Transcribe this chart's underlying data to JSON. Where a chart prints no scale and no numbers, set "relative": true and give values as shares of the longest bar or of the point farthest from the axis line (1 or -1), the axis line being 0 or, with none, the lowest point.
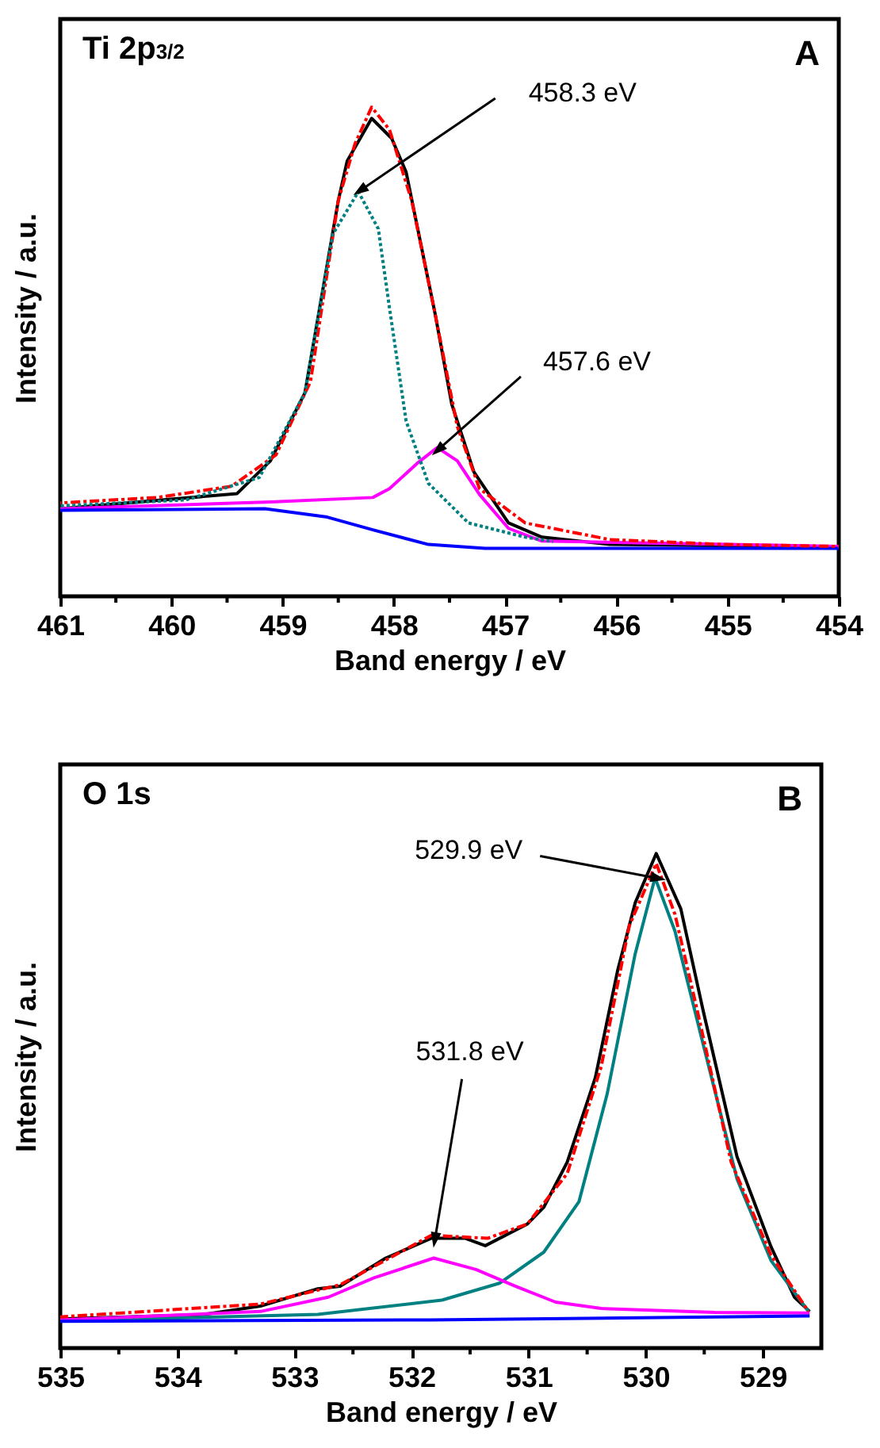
{
  "chart_data": [
    {
      "type": "line",
      "title": "Ti 2p$_{3/2}$",
      "xlabel": "Band energy / eV",
      "ylabel": "Intensity / a.u.",
      "relative": true,
      "xlim": [
        461,
        454
      ],
      "xticks": [
        461,
        {
          "value": 460.5,
          "label": null
        },
        460,
        {
          "value": 459.5,
          "label": null
        },
        459,
        {
          "value": 458.5,
          "label": null
        },
        458,
        {
          "value": 457.5,
          "label": null
        },
        457,
        {
          "value": 456.5,
          "label": null
        },
        456,
        {
          "value": 455.5,
          "label": null
        },
        455,
        {
          "value": 454.5,
          "label": null
        },
        454
      ],
      "annotations": [
        "A",
        {
          "text": "458.3 eV",
          "x": 458.3,
          "y": 0.83
        },
        {
          "text": "457.6 eV",
          "x": 457.6,
          "y": 0.3
        }
      ],
      "series": [
        {
          "color": "#000000",
          "line_style": "solid",
          "x": [
            461,
            459.41,
            459.11,
            458.8,
            458.5,
            458.42,
            458.2,
            458.02,
            457.89,
            457.63,
            457.48,
            457.28,
            456.97,
            456.67,
            456.06,
            454
          ],
          "values": [
            0.179,
            0.21,
            0.277,
            0.416,
            0.809,
            0.89,
            0.977,
            0.936,
            0.867,
            0.578,
            0.393,
            0.254,
            0.15,
            0.121,
            0.106,
            0.101
          ]
        },
        {
          "color": "#ff0000",
          "line_style": "dashed",
          "x": [
            461,
            460.13,
            459.46,
            459.06,
            458.75,
            458.5,
            458.35,
            458.2,
            458.04,
            457.84,
            457.63,
            457.43,
            457.23,
            456.82,
            456.06,
            455.04,
            454
          ],
          "values": [
            0.191,
            0.202,
            0.225,
            0.289,
            0.439,
            0.809,
            0.925,
            1,
            0.954,
            0.809,
            0.578,
            0.347,
            0.22,
            0.15,
            0.116,
            0.106,
            0.102
          ]
        },
        {
          "color": "#008080",
          "line_style": "dotted",
          "x": [
            461,
            459.87,
            459.21,
            458.8,
            458.55,
            458.32,
            458.14,
            458.04,
            457.89,
            457.69,
            457.33,
            456.82,
            456.57
          ],
          "values": [
            0.185,
            0.197,
            0.243,
            0.416,
            0.74,
            0.827,
            0.751,
            0.59,
            0.358,
            0.231,
            0.15,
            0.121,
            0.112
          ]
        },
        {
          "color": "#ff00ff",
          "line_style": "solid",
          "x": [
            461,
            459.11,
            458.19,
            458.04,
            457.79,
            457.61,
            457.43,
            457.23,
            456.97,
            456.67,
            454
          ],
          "values": [
            0.179,
            0.193,
            0.202,
            0.22,
            0.272,
            0.304,
            0.277,
            0.208,
            0.139,
            0.113,
            0.102
          ]
        },
        {
          "color": "#0000ff",
          "line_style": "solid",
          "x": [
            461,
            459.16,
            458.6,
            458.19,
            457.69,
            457.18,
            454
          ],
          "values": [
            0.176,
            0.179,
            0.162,
            0.136,
            0.106,
            0.098,
            0.098
          ]
        }
      ]
    },
    {
      "type": "line",
      "title": "O 1s",
      "xlabel": "Band energy / eV",
      "ylabel": "Intensity / a.u.",
      "relative": true,
      "xlim": [
        535,
        528.5
      ],
      "xticks": [
        535,
        {
          "value": 534.5,
          "label": null
        },
        534,
        {
          "value": 533.5,
          "label": null
        },
        533,
        {
          "value": 532.5,
          "label": null
        },
        532,
        {
          "value": 531.5,
          "label": null
        },
        531,
        {
          "value": 530.5,
          "label": null
        },
        530,
        {
          "value": 529.5,
          "label": null
        },
        529
      ],
      "annotations": [
        "B",
        {
          "text": "529.9 eV",
          "x": 529.9,
          "y": 0.95
        },
        {
          "text": "531.8 eV",
          "x": 531.8,
          "y": 0.22
        }
      ],
      "series": [
        {
          "color": "#000000",
          "line_style": "solid",
          "x": [
            535,
            533.77,
            533.29,
            532.8,
            532.61,
            532.22,
            531.83,
            531.54,
            531.37,
            531.01,
            530.87,
            530.67,
            530.43,
            530.24,
            530.09,
            529.91,
            529.7,
            529.51,
            529.22,
            528.93,
            528.73,
            528.6
          ],
          "values": [
            0.059,
            0.068,
            0.085,
            0.12,
            0.125,
            0.182,
            0.222,
            0.222,
            0.207,
            0.251,
            0.285,
            0.376,
            0.547,
            0.763,
            0.9,
            1,
            0.888,
            0.683,
            0.387,
            0.205,
            0.103,
            0.074
          ]
        },
        {
          "color": "#ff0000",
          "line_style": "dashed",
          "x": [
            535,
            533.29,
            532.61,
            531.83,
            531.35,
            531.01,
            530.67,
            530.38,
            530.14,
            529.91,
            529.75,
            529.56,
            529.27,
            528.93,
            528.61
          ],
          "values": [
            0.063,
            0.089,
            0.128,
            0.228,
            0.222,
            0.251,
            0.353,
            0.569,
            0.854,
            0.98,
            0.877,
            0.683,
            0.376,
            0.188,
            0.074
          ]
        },
        {
          "color": "#008080",
          "line_style": "solid",
          "x": [
            535,
            532.8,
            531.74,
            531.25,
            530.87,
            530.57,
            530.33,
            530.09,
            529.92,
            529.75,
            529.51,
            529.22,
            528.93,
            528.61
          ],
          "values": [
            0.055,
            0.068,
            0.097,
            0.131,
            0.194,
            0.296,
            0.513,
            0.797,
            0.951,
            0.843,
            0.615,
            0.342,
            0.177,
            0.074
          ]
        },
        {
          "color": "#ff00ff",
          "line_style": "solid",
          "x": [
            535,
            533.29,
            532.71,
            532.32,
            531.81,
            531.45,
            531.11,
            530.77,
            530.38,
            529.41,
            528.6
          ],
          "values": [
            0.057,
            0.074,
            0.103,
            0.142,
            0.182,
            0.159,
            0.125,
            0.093,
            0.08,
            0.072,
            0.071
          ]
        },
        {
          "color": "#0000ff",
          "line_style": "solid",
          "x": [
            535,
            531.83,
            528.6
          ],
          "values": [
            0.054,
            0.057,
            0.065
          ]
        }
      ]
    }
  ]
}
